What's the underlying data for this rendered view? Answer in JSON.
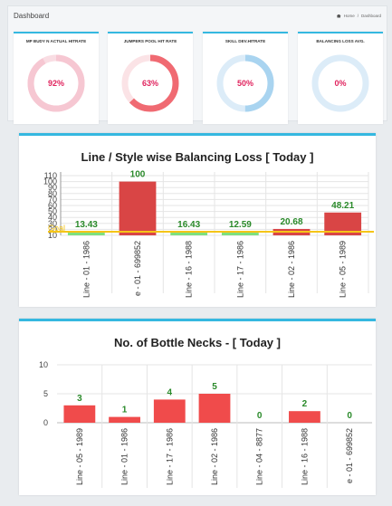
{
  "header": {
    "title": "Dashboard",
    "breadcrumb_home": "Home",
    "breadcrumb_current": "Dashboard"
  },
  "tiles": [
    {
      "title": "MP BUDY N ACTUAL HITRATE",
      "value": "92%",
      "percent": 92,
      "color": "#f6c7d2"
    },
    {
      "title": "JUMPERS POOL HIT RATE",
      "value": "63%",
      "percent": 63,
      "color": "#f06a72"
    },
    {
      "title": "SKILL DEV.HITRATE",
      "value": "50%",
      "percent": 50,
      "color": "#a9d4f0"
    },
    {
      "title": "BALANCING LOSS AVG.",
      "value": "0%",
      "percent": 0,
      "color": "#a9d4f0"
    }
  ],
  "chart_data": [
    {
      "type": "bar",
      "title": "Line / Style wise Balancing Loss [ Today ]",
      "categories": [
        "Line - 01 - 1986",
        "e - 01 - 699852",
        "Line - 16 - 1988",
        "Line - 17 - 1986",
        "Line - 02 - 1986",
        "Line - 05 - 1989"
      ],
      "values": [
        13.43,
        100,
        16.43,
        12.59,
        20.68,
        48.21
      ],
      "data_labels": [
        "13.43",
        "100",
        "16.43",
        "12.59",
        "20.68",
        "48.21"
      ],
      "bar_colors": [
        "#7ee07e",
        "#d94545",
        "#7ee07e",
        "#7ee07e",
        "#d94545",
        "#d94545"
      ],
      "yticks": [
        "10",
        "20",
        "30",
        "40",
        "50",
        "60",
        "70",
        "80",
        "90",
        "100",
        "110"
      ],
      "ylim": [
        10,
        110
      ],
      "threshold": {
        "value": 10,
        "label": "Goal",
        "color": "#f5c518"
      }
    },
    {
      "type": "bar",
      "title": "No. of Bottle Necks - [ Today ]",
      "categories": [
        "Line - 05 - 1989",
        "Line - 01 - 1986",
        "Line - 17 - 1986",
        "Line - 02 - 1986",
        "Line - 04 - 8877",
        "Line - 16 - 1988",
        "e - 01 - 699852"
      ],
      "values": [
        3,
        1,
        4,
        5,
        0,
        2,
        0
      ],
      "data_labels": [
        "3",
        "1",
        "4",
        "5",
        "0",
        "2",
        "0"
      ],
      "bar_color": "#f04b4b",
      "yticks": [
        "0",
        "5",
        "10"
      ],
      "ylim": [
        0,
        10
      ]
    }
  ]
}
